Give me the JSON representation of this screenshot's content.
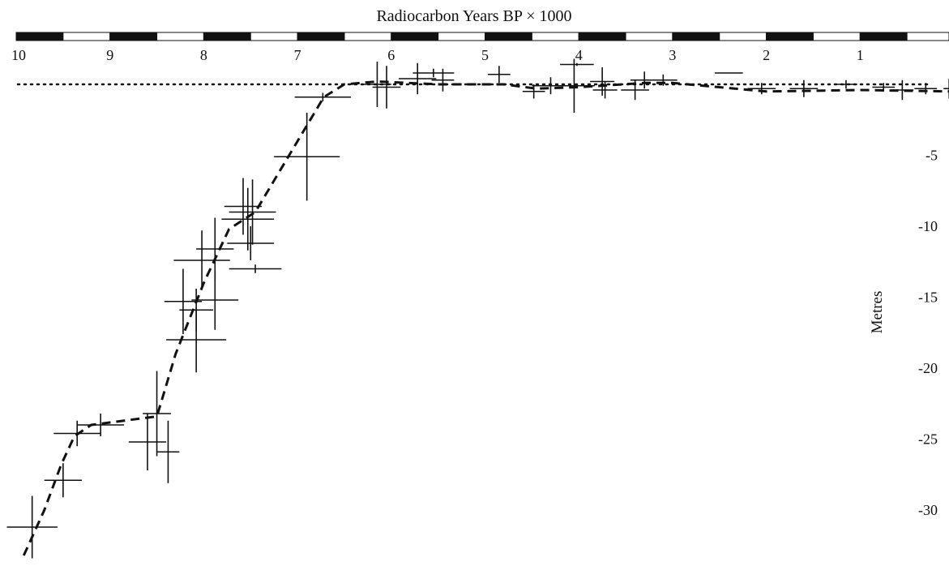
{
  "chart_data": {
    "type": "scatter",
    "title": "Radiocarbon Years BP × 1000",
    "xlabel": "Radiocarbon Years BP × 1000",
    "ylabel": "Metres",
    "x_reversed": true,
    "x_axis_position": "top",
    "y_axis_position": "right",
    "xlim": [
      10,
      0
    ],
    "ylim": [
      -33.5,
      1
    ],
    "x_ticks": [
      10,
      9,
      8,
      7,
      6,
      5,
      4,
      3,
      2,
      1
    ],
    "x_tick_labels": [
      "10",
      "9",
      "8",
      "7",
      "6",
      "5",
      "4",
      "3",
      "2",
      "1"
    ],
    "y_ticks": [
      -5,
      -10,
      -15,
      -20,
      -25,
      -30
    ],
    "y_tick_labels": [
      "-5",
      "-10",
      "-15",
      "-20",
      "-25",
      "-30"
    ],
    "reference_level": 0,
    "colors": {
      "ink": "#111111",
      "bar_dark": "#111111",
      "bar_light": "#ffffff"
    },
    "samples": [
      {
        "x": 9.83,
        "y": -31.2,
        "xerr": 0.27,
        "yerr": 2.2
      },
      {
        "x": 9.5,
        "y": -27.9,
        "xerr": 0.2,
        "yerr": 1.2
      },
      {
        "x": 9.35,
        "y": -24.6,
        "xerr": 0.25,
        "yerr": 0.9
      },
      {
        "x": 9.1,
        "y": -24.0,
        "xerr": 0.25,
        "yerr": 0.8
      },
      {
        "x": 8.6,
        "y": -25.2,
        "xerr": 0.2,
        "yerr": 2.0
      },
      {
        "x": 8.38,
        "y": -25.9,
        "xerr": 0.12,
        "yerr": 2.2
      },
      {
        "x": 8.5,
        "y": -23.2,
        "xerr": 0.15,
        "yerr": 3.0
      },
      {
        "x": 8.08,
        "y": -18.0,
        "xerr": 0.32,
        "yerr": 2.3
      },
      {
        "x": 8.08,
        "y": -15.9,
        "xerr": 0.18,
        "yerr": 1.5
      },
      {
        "x": 8.22,
        "y": -15.3,
        "xerr": 0.2,
        "yerr": 2.3
      },
      {
        "x": 7.88,
        "y": -15.2,
        "xerr": 0.25,
        "yerr": 2.1
      },
      {
        "x": 8.02,
        "y": -12.4,
        "xerr": 0.3,
        "yerr": 2.1
      },
      {
        "x": 7.88,
        "y": -11.6,
        "xerr": 0.2,
        "yerr": 2.2
      },
      {
        "x": 7.45,
        "y": -13.0,
        "xerr": 0.28,
        "yerr": 0.3
      },
      {
        "x": 7.5,
        "y": -11.2,
        "xerr": 0.25,
        "yerr": 1.2
      },
      {
        "x": 7.53,
        "y": -9.5,
        "xerr": 0.28,
        "yerr": 2.2
      },
      {
        "x": 7.48,
        "y": -9.0,
        "xerr": 0.25,
        "yerr": 2.3
      },
      {
        "x": 7.58,
        "y": -8.6,
        "xerr": 0.2,
        "yerr": 2.0
      },
      {
        "x": 6.9,
        "y": -5.1,
        "xerr": 0.35,
        "yerr": 3.1
      },
      {
        "x": 6.73,
        "y": -0.9,
        "xerr": 0.3,
        "yerr": 0.3
      },
      {
        "x": 6.15,
        "y": 0.0,
        "xerr": 0.15,
        "yerr": 1.6
      },
      {
        "x": 6.05,
        "y": -0.2,
        "xerr": 0.15,
        "yerr": 1.5
      },
      {
        "x": 5.72,
        "y": 0.4,
        "xerr": 0.2,
        "yerr": 1.1
      },
      {
        "x": 5.55,
        "y": 0.8,
        "xerr": 0.22,
        "yerr": 0.3
      },
      {
        "x": 5.45,
        "y": 0.3,
        "xerr": 0.12,
        "yerr": 0.8
      },
      {
        "x": 4.85,
        "y": 0.7,
        "xerr": 0.12,
        "yerr": 0.6
      },
      {
        "x": 4.48,
        "y": -0.5,
        "xerr": 0.12,
        "yerr": 0.5
      },
      {
        "x": 4.3,
        "y": -0.1,
        "xerr": 0.2,
        "yerr": 0.6
      },
      {
        "x": 4.05,
        "y": -0.1,
        "xerr": 0.22,
        "yerr": 1.9
      },
      {
        "x": 4.02,
        "y": 1.4,
        "xerr": 0.18,
        "yerr": 0.1
      },
      {
        "x": 3.75,
        "y": 0.2,
        "xerr": 0.13,
        "yerr": 1.0
      },
      {
        "x": 3.72,
        "y": -0.4,
        "xerr": 0.13,
        "yerr": 0.6
      },
      {
        "x": 3.4,
        "y": -0.4,
        "xerr": 0.15,
        "yerr": 0.7
      },
      {
        "x": 3.3,
        "y": 0.3,
        "xerr": 0.15,
        "yerr": 0.6
      },
      {
        "x": 3.1,
        "y": 0.3,
        "xerr": 0.15,
        "yerr": 0.4
      },
      {
        "x": 2.4,
        "y": 0.8,
        "xerr": 0.15,
        "yerr": 0.0
      },
      {
        "x": 2.05,
        "y": -0.3,
        "xerr": 0.15,
        "yerr": 0.4
      },
      {
        "x": 1.6,
        "y": -0.3,
        "xerr": 0.15,
        "yerr": 0.6
      },
      {
        "x": 1.15,
        "y": 0.0,
        "xerr": 0.12,
        "yerr": 0.3
      },
      {
        "x": 0.75,
        "y": -0.2,
        "xerr": 0.12,
        "yerr": 0.3
      },
      {
        "x": 0.55,
        "y": -0.4,
        "xerr": 0.12,
        "yerr": 0.7
      },
      {
        "x": 0.3,
        "y": -0.3,
        "xerr": 0.12,
        "yerr": 0.4
      },
      {
        "x": 0.05,
        "y": -0.3,
        "xerr": 0.06,
        "yerr": 0.7
      }
    ],
    "curve": {
      "style": "dashed",
      "x": [
        9.92,
        9.7,
        9.52,
        9.38,
        9.2,
        8.5,
        8.3,
        8.0,
        7.73,
        7.45,
        6.72,
        6.5,
        6.15,
        5.5,
        4.8,
        4.45,
        4.0,
        3.3,
        3.0,
        2.0,
        1.0,
        0.0
      ],
      "y": [
        -33.2,
        -30.0,
        -26.8,
        -24.8,
        -24.0,
        -23.4,
        -19.0,
        -14.0,
        -10.2,
        -9.0,
        -0.9,
        0.0,
        0.2,
        0.0,
        0.0,
        -0.3,
        -0.2,
        0.1,
        0.1,
        -0.5,
        -0.4,
        -0.5
      ]
    }
  }
}
